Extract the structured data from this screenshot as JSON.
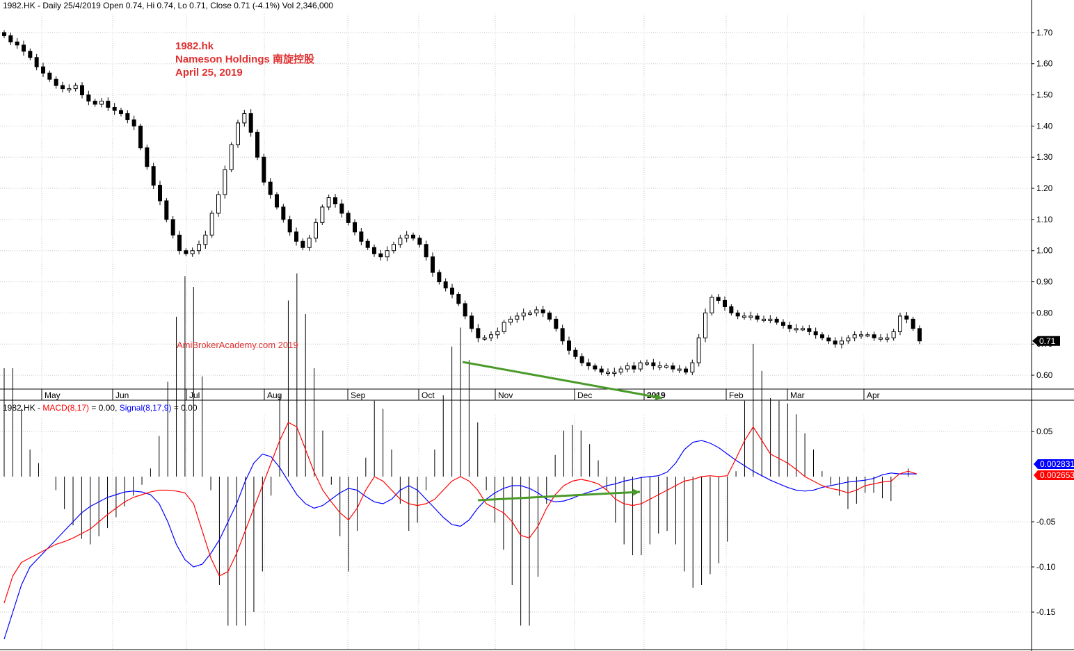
{
  "price_header": {
    "symbol": "1982.HK",
    "text": "1982.HK - Daily 25/4/2019 Open 0.74, Hi 0.74, Lo 0.71, Close 0.71 (-4.1%) Vol 2,346,000"
  },
  "annotation": {
    "line1": "1982.hk",
    "line2": "Nameson Holdings 南旋控股",
    "line3": "April 25, 2019"
  },
  "watermark": "AmiBrokerAcademy.com  2019",
  "macd_header": {
    "symbol": "1982.HK - ",
    "macd_label": "MACD(8,17)",
    "macd_value": " = 0.00, ",
    "signal_label": "Signal(8,17,9)",
    "signal_value": " = 0.00"
  },
  "colors": {
    "up_candle": "#ffffff",
    "down_candle": "#000000",
    "macd_line": "#ff0000",
    "signal_line": "#0000ff",
    "divergence_arrow": "#4a9a2a",
    "annotation_text": "#e03030",
    "grid": "#c8c8c8"
  },
  "chart_data": [
    {
      "type": "candlestick",
      "title": "1982.HK - Daily 25/4/2019",
      "ylim": [
        0.56,
        1.76
      ],
      "yticks": [
        "1.70",
        "1.60",
        "1.50",
        "1.40",
        "1.30",
        "1.20",
        "1.10",
        "1.00",
        "0.90",
        "0.80",
        "0.70",
        "0.60"
      ],
      "ytick_values": [
        1.7,
        1.6,
        1.5,
        1.4,
        1.3,
        1.2,
        1.1,
        1.0,
        0.9,
        0.8,
        0.7,
        0.6
      ],
      "months": [
        "May",
        "Jun",
        "Jul",
        "Aug",
        "Sep",
        "Oct",
        "Nov",
        "Dec",
        "2019",
        "Feb",
        "Mar",
        "Apr"
      ],
      "last_price_label": "0.71",
      "close_series": [
        1.69,
        1.67,
        1.66,
        1.64,
        1.62,
        1.59,
        1.57,
        1.55,
        1.53,
        1.52,
        1.52,
        1.53,
        1.5,
        1.48,
        1.47,
        1.48,
        1.46,
        1.45,
        1.44,
        1.42,
        1.4,
        1.33,
        1.27,
        1.21,
        1.16,
        1.1,
        1.05,
        1.0,
        0.99,
        1.0,
        1.02,
        1.05,
        1.12,
        1.18,
        1.26,
        1.34,
        1.41,
        1.44,
        1.38,
        1.3,
        1.22,
        1.18,
        1.14,
        1.1,
        1.06,
        1.03,
        1.01,
        1.04,
        1.09,
        1.14,
        1.17,
        1.15,
        1.12,
        1.09,
        1.06,
        1.03,
        1.01,
        0.99,
        0.98,
        1.0,
        1.02,
        1.04,
        1.05,
        1.04,
        1.02,
        0.98,
        0.93,
        0.9,
        0.88,
        0.86,
        0.83,
        0.79,
        0.75,
        0.72,
        0.72,
        0.73,
        0.74,
        0.77,
        0.78,
        0.79,
        0.8,
        0.8,
        0.81,
        0.8,
        0.78,
        0.75,
        0.71,
        0.68,
        0.66,
        0.64,
        0.63,
        0.62,
        0.61,
        0.61,
        0.61,
        0.62,
        0.63,
        0.62,
        0.64,
        0.64,
        0.63,
        0.63,
        0.63,
        0.62,
        0.62,
        0.61,
        0.64,
        0.72,
        0.8,
        0.85,
        0.84,
        0.82,
        0.8,
        0.79,
        0.79,
        0.79,
        0.78,
        0.78,
        0.78,
        0.77,
        0.76,
        0.75,
        0.75,
        0.75,
        0.74,
        0.73,
        0.72,
        0.71,
        0.7,
        0.71,
        0.72,
        0.73,
        0.73,
        0.73,
        0.72,
        0.72,
        0.72,
        0.74,
        0.79,
        0.78,
        0.75,
        0.71
      ]
    },
    {
      "type": "line",
      "title": "MACD(8,17), Signal(8,17,9)",
      "ylim": [
        -0.19,
        0.07
      ],
      "yticks": [
        "0.05",
        "-0.05",
        "-0.10",
        "-0.15"
      ],
      "ytick_values": [
        0.05,
        -0.05,
        -0.1,
        -0.15
      ],
      "badges": [
        {
          "name": "Signal",
          "value": "0.002831"
        },
        {
          "name": "MACD",
          "value": "0.002653"
        }
      ],
      "series": [
        {
          "name": "MACD(8,17)",
          "values": [
            -0.14,
            -0.11,
            -0.095,
            -0.09,
            -0.085,
            -0.08,
            -0.075,
            -0.072,
            -0.068,
            -0.063,
            -0.058,
            -0.05,
            -0.042,
            -0.035,
            -0.028,
            -0.023,
            -0.02,
            -0.017,
            -0.015,
            -0.015,
            -0.016,
            -0.018,
            -0.03,
            -0.06,
            -0.09,
            -0.11,
            -0.105,
            -0.085,
            -0.06,
            -0.035,
            -0.01,
            0.015,
            0.04,
            0.06,
            0.055,
            0.03,
            0.005,
            -0.015,
            -0.028,
            -0.04,
            -0.048,
            -0.035,
            -0.015,
            0.0,
            -0.005,
            -0.015,
            -0.025,
            -0.03,
            -0.032,
            -0.03,
            -0.025,
            -0.015,
            -0.005,
            0.0,
            -0.005,
            -0.015,
            -0.03,
            -0.035,
            -0.04,
            -0.05,
            -0.065,
            -0.068,
            -0.055,
            -0.035,
            -0.02,
            -0.01,
            -0.005,
            -0.003,
            -0.005,
            -0.008,
            -0.015,
            -0.025,
            -0.03,
            -0.032,
            -0.03,
            -0.025,
            -0.02,
            -0.015,
            -0.01,
            -0.005,
            -0.003,
            0.0,
            0.001,
            0.0,
            0.001,
            0.02,
            0.04,
            0.055,
            0.04,
            0.025,
            0.02,
            0.015,
            0.008,
            0.0,
            -0.005,
            -0.01,
            -0.013,
            -0.015,
            -0.018,
            -0.015,
            -0.01,
            -0.008,
            -0.006,
            -0.005,
            0.003,
            0.006,
            0.003
          ]
        },
        {
          "name": "Signal(8,17,9)",
          "values": [
            -0.18,
            -0.15,
            -0.12,
            -0.1,
            -0.09,
            -0.08,
            -0.07,
            -0.06,
            -0.05,
            -0.04,
            -0.033,
            -0.028,
            -0.023,
            -0.02,
            -0.017,
            -0.016,
            -0.017,
            -0.02,
            -0.03,
            -0.05,
            -0.075,
            -0.092,
            -0.1,
            -0.097,
            -0.085,
            -0.07,
            -0.05,
            -0.03,
            -0.005,
            0.015,
            0.025,
            0.022,
            0.01,
            -0.005,
            -0.02,
            -0.03,
            -0.035,
            -0.032,
            -0.025,
            -0.018,
            -0.013,
            -0.015,
            -0.022,
            -0.028,
            -0.03,
            -0.025,
            -0.015,
            -0.01,
            -0.015,
            -0.025,
            -0.035,
            -0.045,
            -0.053,
            -0.055,
            -0.048,
            -0.035,
            -0.025,
            -0.018,
            -0.013,
            -0.01,
            -0.01,
            -0.013,
            -0.018,
            -0.025,
            -0.028,
            -0.027,
            -0.024,
            -0.02,
            -0.017,
            -0.014,
            -0.01,
            -0.008,
            -0.005,
            -0.003,
            -0.001,
            0.0,
            0.001,
            0.005,
            0.015,
            0.03,
            0.038,
            0.04,
            0.037,
            0.032,
            0.025,
            0.018,
            0.012,
            0.006,
            0.001,
            -0.004,
            -0.008,
            -0.012,
            -0.015,
            -0.016,
            -0.015,
            -0.012,
            -0.01,
            -0.008,
            -0.006,
            -0.005,
            -0.004,
            -0.002,
            0.002,
            0.004,
            0.003,
            0.003,
            0.003
          ]
        }
      ]
    }
  ]
}
